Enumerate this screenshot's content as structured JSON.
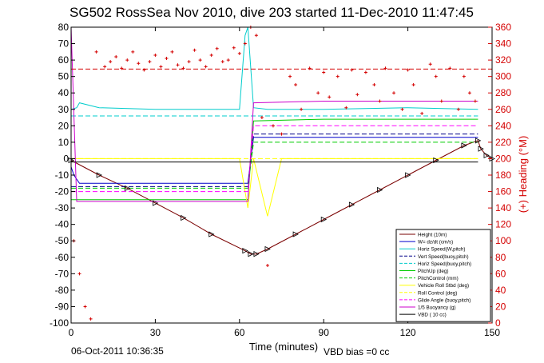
{
  "title": "SG502 RossSea Nov 2010, dive 203 started 11-Dec-2010 11:47:45",
  "footer": {
    "timestamp": "06-Oct-2011 10:36:35",
    "vbd_bias": "VBD bias =0 cc"
  },
  "colors": {
    "right_axis": "#d40000",
    "background": "#ffffff",
    "axes": "#000000"
  },
  "chart_data": {
    "type": "line",
    "xlabel": "Time (minutes)",
    "ylabel_right": "(+) Heading (°M)",
    "xlim": [
      0,
      150
    ],
    "ylim_left": [
      -100,
      80
    ],
    "ylim_right": [
      0,
      360
    ],
    "x_ticks": [
      0,
      30,
      60,
      90,
      120,
      150
    ],
    "y_left_ticks": [
      -100,
      -90,
      -80,
      -70,
      -60,
      -50,
      -40,
      -30,
      -20,
      -10,
      0,
      10,
      20,
      30,
      40,
      50,
      60,
      70,
      80
    ],
    "y_right_ticks": [
      0,
      20,
      40,
      60,
      80,
      100,
      120,
      140,
      160,
      180,
      200,
      220,
      240,
      260,
      280,
      300,
      320,
      340,
      360
    ],
    "legend_position": "lower-right",
    "series": [
      {
        "name": "Height (10m)",
        "color": "#7a0000",
        "style": "solid",
        "axis": "left",
        "x": [
          0,
          10,
          20,
          30,
          40,
          50,
          62,
          64,
          66,
          70,
          80,
          90,
          100,
          110,
          120,
          130,
          140,
          145,
          146,
          148,
          150
        ],
        "y": [
          -1,
          -10,
          -18,
          -27,
          -36,
          -46,
          -56,
          -58,
          -58,
          -55,
          -46,
          -37,
          -28,
          -19,
          -10,
          -1,
          8,
          11,
          6,
          2,
          0
        ]
      },
      {
        "name": "W= dz/dt (cm/s)",
        "color": "#0000cc",
        "style": "solid",
        "axis": "left",
        "x": [
          0,
          1,
          3,
          10,
          30,
          45,
          60,
          63,
          65,
          70,
          90,
          120,
          140,
          145
        ],
        "y": [
          -5,
          -10,
          -15,
          -15,
          -15,
          -15,
          -15,
          -15,
          13,
          13,
          13,
          13,
          13,
          13
        ]
      },
      {
        "name": "Horiz Speed(W,pitch)",
        "color": "#00cccc",
        "style": "solid",
        "axis": "left",
        "x": [
          0,
          2,
          3,
          10,
          30,
          45,
          60,
          62,
          63,
          65,
          70,
          90,
          120,
          145
        ],
        "y": [
          30,
          31,
          34,
          31,
          30,
          30,
          30,
          75,
          80,
          31,
          30,
          30,
          31,
          30
        ]
      },
      {
        "name": "Vert Speed(buoy,pitch)",
        "color": "#000088",
        "style": "dash",
        "axis": "left",
        "x": [
          0,
          3,
          30,
          45,
          60,
          63,
          65,
          90,
          120,
          145
        ],
        "y": [
          -17,
          -17,
          -17,
          -17,
          -17,
          -17,
          15,
          15,
          15,
          15
        ]
      },
      {
        "name": "Horiz Speed(buoy,pitch)",
        "color": "#00cccc",
        "style": "dash",
        "axis": "left",
        "x": [
          0,
          3,
          30,
          45,
          60,
          63,
          65,
          90,
          120,
          145
        ],
        "y": [
          26,
          26,
          26,
          26,
          26,
          26,
          26,
          26,
          26,
          26
        ]
      },
      {
        "name": "PitchUp (deg)",
        "color": "#00cc00",
        "style": "solid",
        "axis": "left",
        "x": [
          0,
          3,
          30,
          45,
          60,
          63,
          65,
          90,
          120,
          145
        ],
        "y": [
          -25,
          -25,
          -25,
          -25,
          -25,
          -25,
          23,
          24,
          24,
          24
        ]
      },
      {
        "name": "PitchControl (mm)",
        "color": "#00cc00",
        "style": "dash",
        "axis": "left",
        "x": [
          0,
          3,
          30,
          45,
          60,
          63,
          65,
          90,
          120,
          145
        ],
        "y": [
          -18,
          -18,
          -18,
          -18,
          -18,
          -18,
          10,
          10,
          10,
          10
        ]
      },
      {
        "name": "Vehicle Roll Stbd (deg)",
        "color": "#ffff00",
        "style": "solid",
        "axis": "left",
        "x": [
          0,
          5,
          10,
          20,
          30,
          45,
          60,
          63,
          65,
          70,
          75,
          80,
          90,
          100,
          110,
          120,
          130,
          140,
          145
        ],
        "y": [
          0,
          0,
          0,
          0,
          0,
          0,
          0,
          -30,
          0,
          -35,
          0,
          0,
          0,
          0,
          0,
          0,
          0,
          0,
          0
        ]
      },
      {
        "name": "Roll Control (deg)",
        "color": "#ffff00",
        "style": "dash",
        "axis": "left",
        "x": [
          0,
          3,
          30,
          45,
          60,
          63,
          65,
          90,
          120,
          145
        ],
        "y": [
          0,
          0,
          0,
          0,
          0,
          0,
          0,
          0,
          0,
          0
        ]
      },
      {
        "name": "Glide Angle (buoy,pitch)",
        "color": "#ff00ff",
        "style": "dash",
        "axis": "left",
        "x": [
          0,
          3,
          30,
          45,
          60,
          63,
          65,
          90,
          120,
          145
        ],
        "y": [
          -20,
          -20,
          -20,
          -20,
          -20,
          -20,
          20,
          20,
          20,
          20
        ]
      },
      {
        "name": "1/5 Buoyancy (g)",
        "color": "#cc00cc",
        "style": "solid",
        "axis": "left",
        "x": [
          0,
          2,
          3,
          30,
          45,
          60,
          63,
          65,
          90,
          120,
          145
        ],
        "y": [
          80,
          -26,
          -26,
          -26,
          -26,
          -26,
          -26,
          34,
          35,
          35,
          35
        ]
      },
      {
        "name": "VBD ( 10 cc)",
        "color": "#000000",
        "style": "solid",
        "axis": "left",
        "x": [
          0,
          1,
          3,
          30,
          60,
          63,
          65,
          90,
          145
        ],
        "y": [
          -2,
          -2,
          -2,
          -2,
          -2,
          -2,
          -2,
          -2,
          -2
        ]
      }
    ],
    "heading": {
      "name": "Heading",
      "color": "#d40000",
      "style": "marker-plus",
      "axis": "right",
      "x": [
        1,
        3,
        5,
        7,
        9,
        12,
        14,
        16,
        18,
        20,
        22,
        24,
        26,
        28,
        30,
        32,
        34,
        36,
        38,
        40,
        42,
        44,
        46,
        48,
        50,
        52,
        54,
        56,
        58,
        60,
        62,
        64,
        66,
        68,
        70,
        72,
        75,
        78,
        80,
        82,
        85,
        88,
        90,
        92,
        95,
        98,
        100,
        102,
        105,
        108,
        110,
        112,
        115,
        118,
        120,
        122,
        125,
        128,
        130,
        132,
        135,
        138,
        140,
        142,
        144
      ],
      "y": [
        100,
        60,
        20,
        5,
        330,
        312,
        318,
        324,
        310,
        320,
        330,
        316,
        308,
        318,
        326,
        312,
        322,
        330,
        314,
        310,
        318,
        332,
        320,
        312,
        326,
        334,
        318,
        320,
        335,
        328,
        340,
        360,
        350,
        250,
        70,
        240,
        230,
        300,
        290,
        260,
        310,
        280,
        305,
        275,
        300,
        262,
        308,
        278,
        305,
        290,
        270,
        310,
        280,
        260,
        308,
        290,
        255,
        315,
        300,
        270,
        310,
        260,
        300,
        280,
        270
      ]
    },
    "heading_mean": {
      "color": "#d40000",
      "style": "dash",
      "axis": "right",
      "value": 309
    }
  }
}
